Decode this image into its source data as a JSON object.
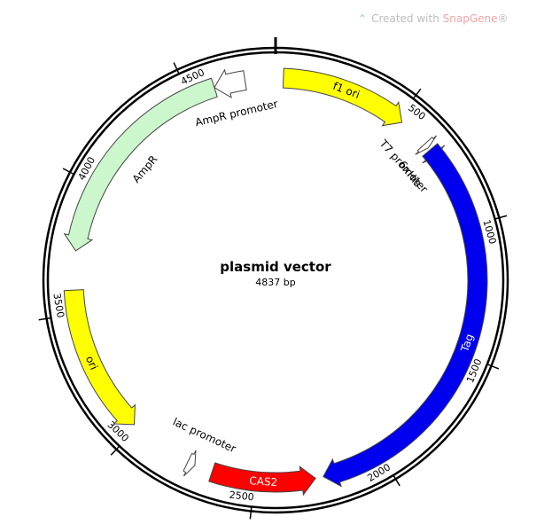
{
  "watermark": {
    "prefix": "Created with ",
    "brand": "SnapGene",
    "suffix": "®",
    "icon": "snapgene-logo-icon"
  },
  "plasmid": {
    "name": "plasmid vector",
    "length_label": "4837 bp",
    "length": 4837
  },
  "ticks": [
    {
      "label": "500",
      "pos": 500
    },
    {
      "label": "1000",
      "pos": 1000
    },
    {
      "label": "1500",
      "pos": 1500
    },
    {
      "label": "2000",
      "pos": 2000
    },
    {
      "label": "2500",
      "pos": 2500
    },
    {
      "label": "3000",
      "pos": 3000
    },
    {
      "label": "3500",
      "pos": 3500
    },
    {
      "label": "4000",
      "pos": 4000
    },
    {
      "label": "4500",
      "pos": 4500
    }
  ],
  "features": [
    {
      "id": "f1-ori",
      "label": "f1 ori",
      "start": 30,
      "end": 520,
      "dir": 1,
      "color": "#ffff00",
      "text_color": "#000000",
      "label_inside": true
    },
    {
      "id": "t7-promoter",
      "label": "T7 promoter",
      "start": 640,
      "end": 660,
      "dir": 1,
      "color": "#ffffff",
      "text_color": "#000000",
      "label_inside": false
    },
    {
      "id": "6xhis",
      "label": "6xHis",
      "start": 685,
      "end": 705,
      "dir": 1,
      "color": "#d4a7c8",
      "text_color": "#000000",
      "label_inside": false
    },
    {
      "id": "tag",
      "label": "Tag",
      "start": 670,
      "end": 2235,
      "dir": 1,
      "color": "#0000ee",
      "text_color": "#ffffff",
      "label_inside": true
    },
    {
      "id": "cas2",
      "label": "CAS2",
      "start": 2265,
      "end": 2665,
      "dir": -1,
      "color": "#ff0000",
      "text_color": "#ffffff",
      "label_inside": true
    },
    {
      "id": "lac-promoter",
      "label": "lac promoter",
      "start": 2735,
      "end": 2765,
      "dir": -1,
      "color": "#ffffff",
      "text_color": "#000000",
      "label_inside": false
    },
    {
      "id": "ori",
      "label": "ori",
      "start": 3015,
      "end": 3590,
      "dir": -1,
      "color": "#ffff00",
      "text_color": "#000000",
      "label_inside": true
    },
    {
      "id": "ampr",
      "label": "AmpR",
      "start": 3740,
      "end": 4600,
      "dir": -1,
      "color": "#ccf6cc",
      "text_color": "#000000",
      "label_inside": false
    },
    {
      "id": "ampr-promoter",
      "label": "AmpR promoter",
      "start": 4600,
      "end": 4720,
      "dir": -1,
      "color": "#ffffff",
      "text_color": "#000000",
      "label_inside": false
    }
  ]
}
